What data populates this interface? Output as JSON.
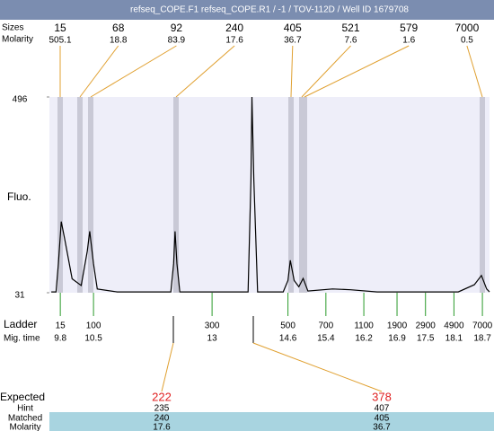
{
  "header": {
    "title": "refseq_COPE.F1  refseq_COPE.R1  / -1  / TOV-112D  / Well ID 1679708"
  },
  "peaks": {
    "size_label": "Sizes",
    "molarity_label": "Molarity",
    "sizes": [
      15,
      68,
      92,
      240,
      405,
      521,
      579,
      7000
    ],
    "molarity": [
      505.1,
      18.8,
      83.9,
      17.6,
      36.7,
      7.6,
      1.6,
      0.5
    ]
  },
  "chart_data": {
    "type": "line",
    "ylabel": "Fluo.",
    "color": "#000000",
    "x": [
      9.61,
      9.71,
      9.76,
      9.82,
      9.89,
      10.05,
      10.24,
      10.37,
      10.42,
      10.5,
      10.58,
      11.0,
      12.13,
      12.19,
      12.22,
      12.26,
      12.32,
      13.76,
      13.82,
      13.84,
      13.88,
      13.96,
      14.5,
      14.6,
      14.65,
      14.73,
      14.83,
      14.92,
      15.02,
      15.54,
      15.92,
      16.48,
      18.19,
      18.53,
      18.68,
      18.79,
      18.85
    ],
    "values": [
      33,
      33,
      100,
      200,
      160,
      64,
      48,
      130,
      177,
      100,
      40,
      33,
      33,
      100,
      177,
      100,
      33,
      33,
      300,
      496,
      300,
      33,
      33,
      60,
      108,
      60,
      45,
      65,
      35,
      40,
      38,
      33,
      33,
      50,
      72,
      40,
      33
    ],
    "xlim": [
      9.57,
      18.85
    ],
    "ylim": [
      31,
      496
    ],
    "yticks": [
      31,
      496
    ],
    "ladder_label": "Ladder",
    "xtick_label": "Mig. time",
    "ladder": [
      15,
      100,
      300,
      500,
      700,
      1100,
      1900,
      2900,
      4900,
      7000
    ],
    "xticks": [
      9.8,
      10.5,
      13,
      14.6,
      15.4,
      16.2,
      16.9,
      17.5,
      18.1,
      18.7
    ]
  },
  "expected": {
    "labels": [
      "Expected",
      "Hint",
      "Matched",
      "Molarity"
    ],
    "expected": [
      222,
      378
    ],
    "hint": [
      235,
      407
    ],
    "matched": [
      240,
      405
    ],
    "molarity": [
      17.6,
      36.7
    ]
  }
}
